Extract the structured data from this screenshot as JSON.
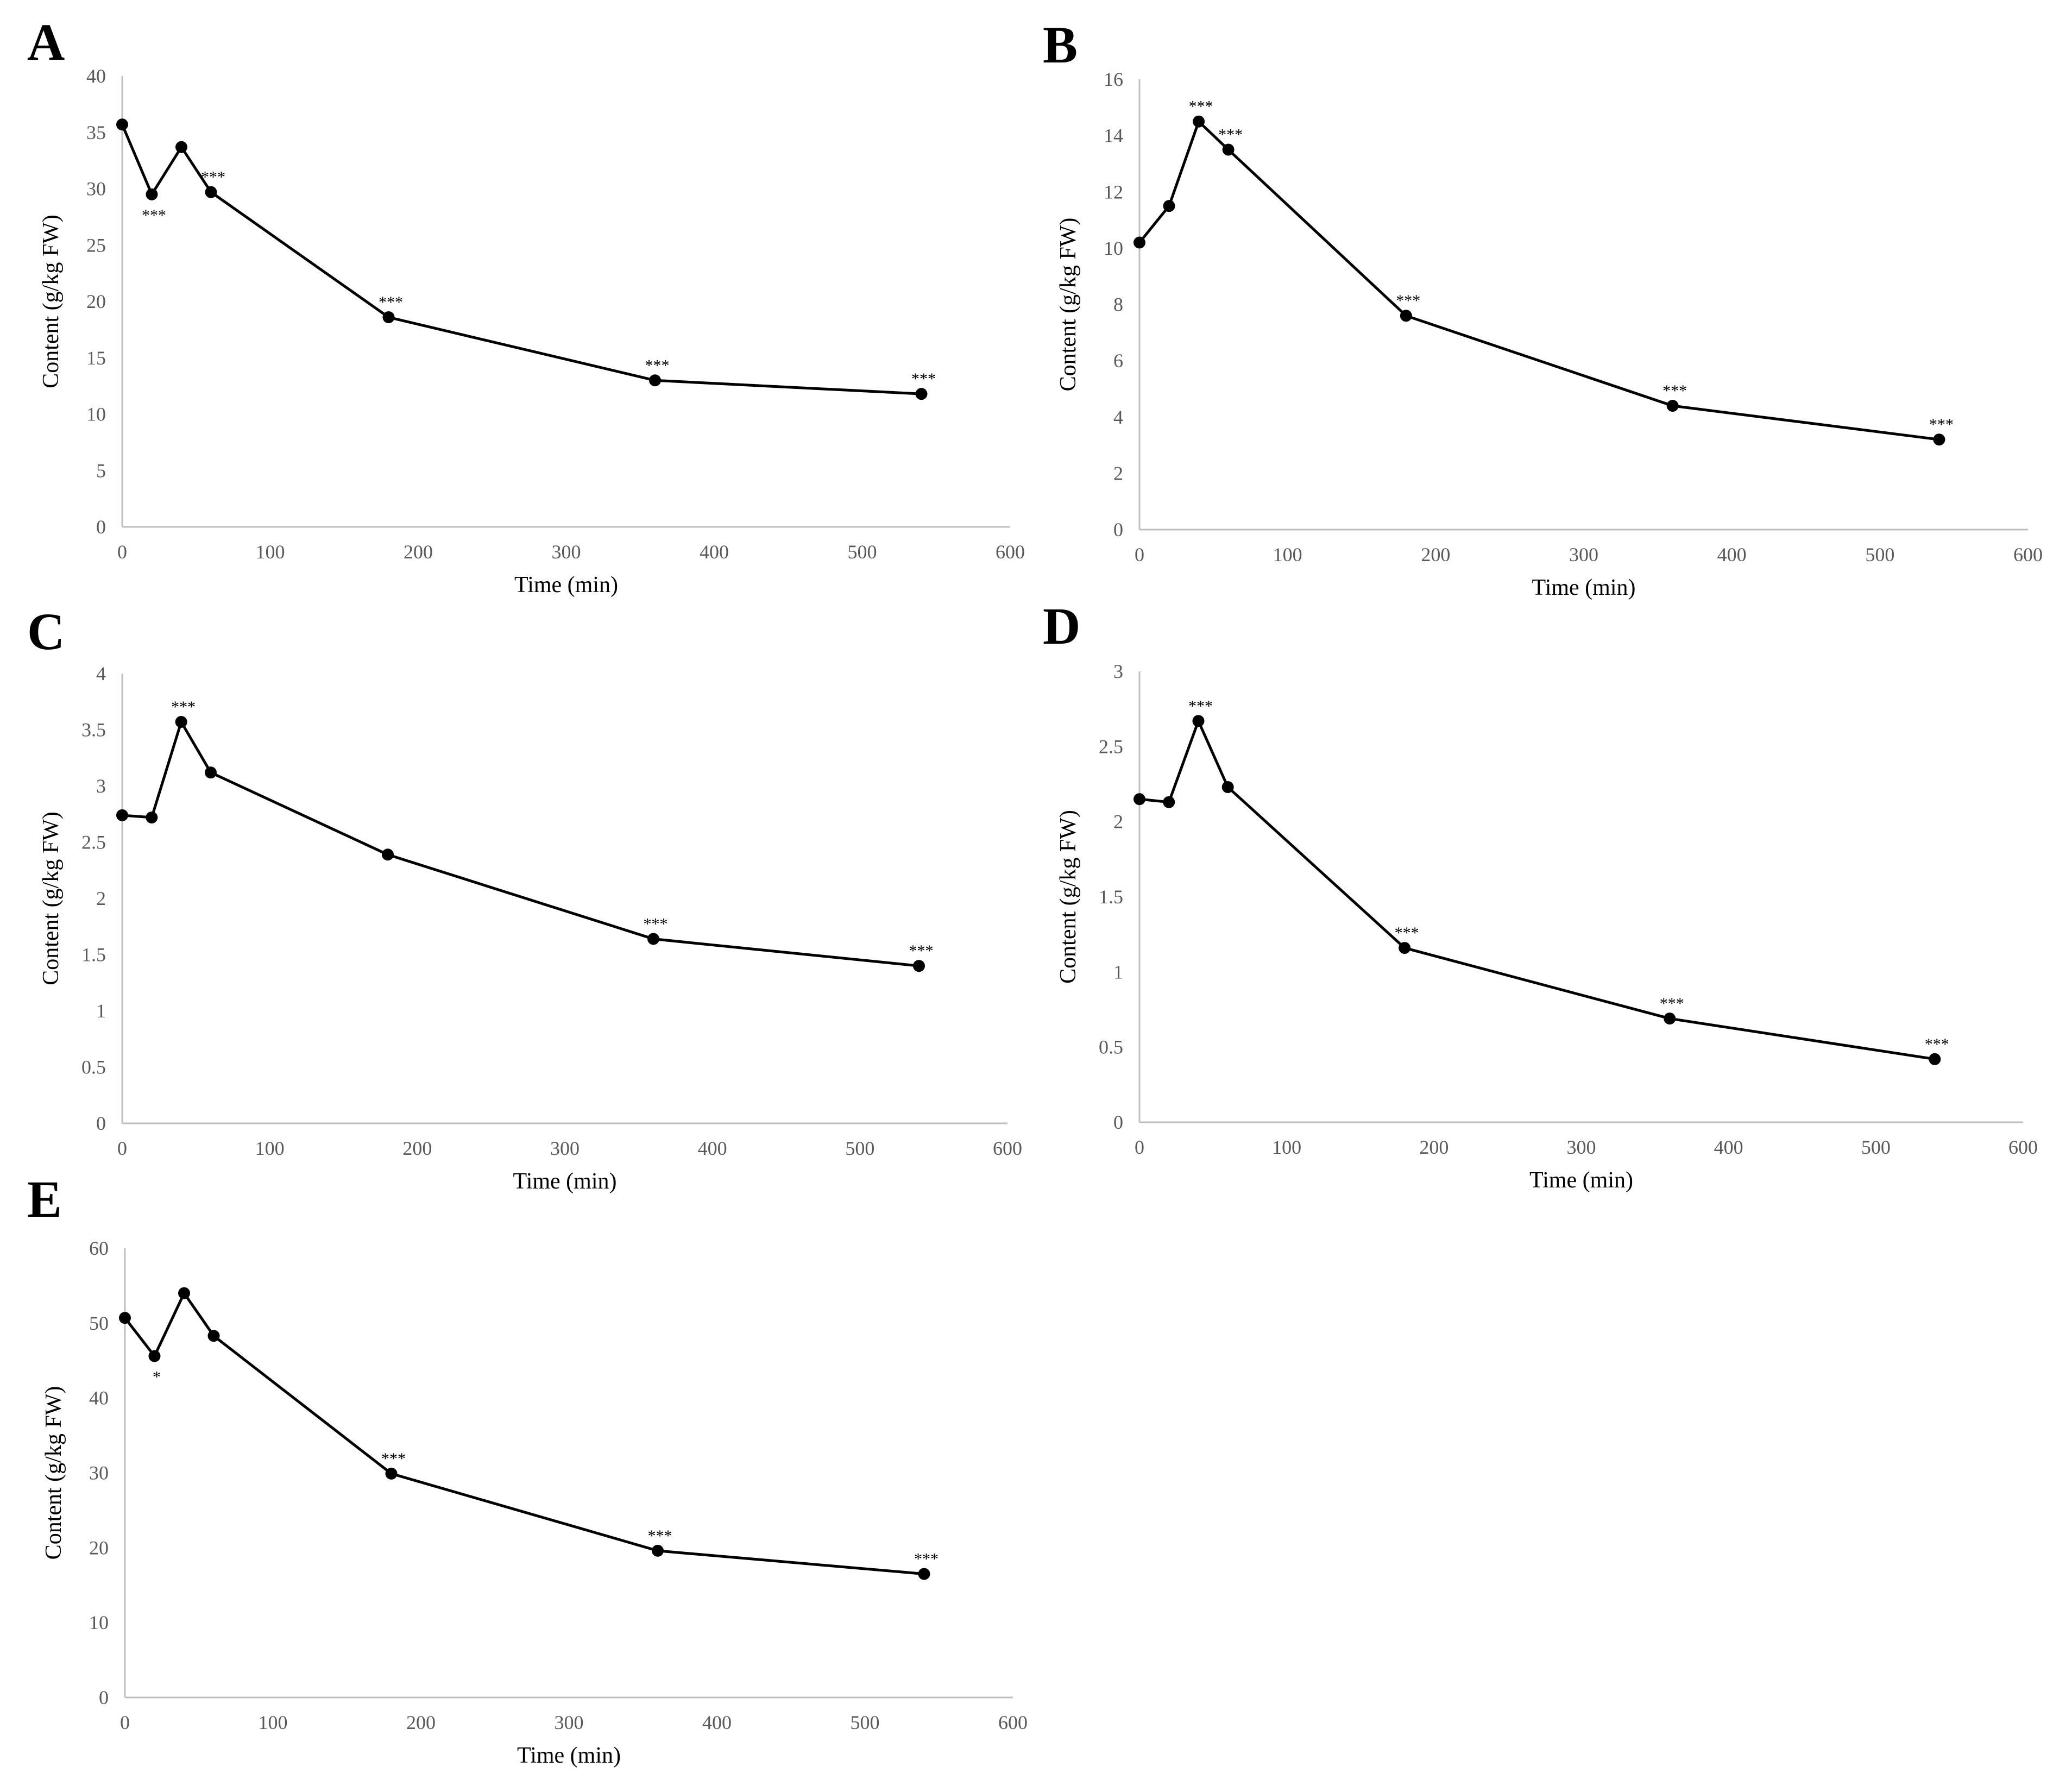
{
  "figure": {
    "panel_count": 5
  },
  "style": {
    "line_color": "#000000",
    "marker_color": "#000000",
    "axis_color": "#bfbfbf",
    "tick_label_color": "#595959",
    "text_color": "#000000"
  },
  "chart_data": [
    {
      "panel": "A",
      "type": "line",
      "xlabel": "Time (min)",
      "ylabel": "Content (g/kg FW)",
      "xlim": [
        0,
        600
      ],
      "ylim": [
        0,
        40
      ],
      "xticks": [
        0,
        100,
        200,
        300,
        400,
        500,
        600
      ],
      "xtick_labels": [
        "0",
        "100",
        "200",
        "300",
        "400",
        "500",
        "600"
      ],
      "yticks": [
        0,
        5,
        10,
        15,
        20,
        25,
        30,
        35,
        40
      ],
      "ytick_labels": [
        "0",
        "5",
        "10",
        "15",
        "20",
        "25",
        "30",
        "35",
        "40"
      ],
      "grid": false,
      "series": [
        {
          "name": "A",
          "x": [
            0,
            20,
            40,
            60,
            180,
            360,
            540
          ],
          "y": [
            35.7,
            29.5,
            33.7,
            29.7,
            18.6,
            13.0,
            11.8
          ],
          "significance": [
            "",
            "***",
            "",
            "***",
            "***",
            "***",
            "***"
          ],
          "sig_position": [
            "above",
            "below",
            "above",
            "above",
            "above",
            "above",
            "above"
          ]
        }
      ]
    },
    {
      "panel": "B",
      "type": "line",
      "xlabel": "Time (min)",
      "ylabel": "Content (g/kg FW)",
      "xlim": [
        0,
        600
      ],
      "ylim": [
        0,
        16
      ],
      "xticks": [
        0,
        100,
        200,
        300,
        400,
        500,
        600
      ],
      "xtick_labels": [
        "0",
        "100",
        "200",
        "300",
        "400",
        "500",
        "600"
      ],
      "yticks": [
        0,
        2,
        4,
        6,
        8,
        10,
        12,
        14,
        16
      ],
      "ytick_labels": [
        "0",
        "2",
        "4",
        "6",
        "8",
        "10",
        "12",
        "14",
        "16"
      ],
      "grid": false,
      "series": [
        {
          "name": "B",
          "x": [
            0,
            20,
            40,
            60,
            180,
            360,
            540
          ],
          "y": [
            10.2,
            11.5,
            14.5,
            13.5,
            7.6,
            4.4,
            3.2
          ],
          "significance": [
            "",
            "",
            "***",
            "***",
            "***",
            "***",
            "***"
          ],
          "sig_position": [
            "above",
            "above",
            "above",
            "above",
            "above",
            "above",
            "above"
          ]
        }
      ]
    },
    {
      "panel": "C",
      "type": "line",
      "xlabel": "Time (min)",
      "ylabel": "Content (g/kg FW)",
      "xlim": [
        0,
        600
      ],
      "ylim": [
        0,
        4
      ],
      "xticks": [
        0,
        100,
        200,
        300,
        400,
        500,
        600
      ],
      "xtick_labels": [
        "0",
        "100",
        "200",
        "300",
        "400",
        "500",
        "600"
      ],
      "yticks": [
        0,
        0.5,
        1,
        1.5,
        2,
        2.5,
        3,
        3.5,
        4
      ],
      "ytick_labels": [
        "0",
        "0.5",
        "1",
        "1.5",
        "2",
        "2.5",
        "3",
        "3.5",
        "4"
      ],
      "grid": false,
      "series": [
        {
          "name": "C",
          "x": [
            0,
            20,
            40,
            60,
            180,
            360,
            540
          ],
          "y": [
            2.74,
            2.72,
            3.57,
            3.12,
            2.39,
            1.64,
            1.4
          ],
          "significance": [
            "",
            "",
            "***",
            "",
            "",
            "***",
            "***"
          ],
          "sig_position": [
            "above",
            "above",
            "above",
            "above",
            "above",
            "above",
            "above"
          ]
        }
      ]
    },
    {
      "panel": "D",
      "type": "line",
      "xlabel": "Time (min)",
      "ylabel": "Content (g/kg FW)",
      "xlim": [
        0,
        600
      ],
      "ylim": [
        0,
        3
      ],
      "xticks": [
        0,
        100,
        200,
        300,
        400,
        500,
        600
      ],
      "xtick_labels": [
        "0",
        "100",
        "200",
        "300",
        "400",
        "500",
        "600"
      ],
      "yticks": [
        0,
        0.5,
        1,
        1.5,
        2,
        2.5,
        3
      ],
      "ytick_labels": [
        "0",
        "0.5",
        "1",
        "1.5",
        "2",
        "2.5",
        "3"
      ],
      "grid": false,
      "series": [
        {
          "name": "D",
          "x": [
            0,
            20,
            40,
            60,
            180,
            360,
            540
          ],
          "y": [
            2.15,
            2.13,
            2.67,
            2.23,
            1.16,
            0.69,
            0.42
          ],
          "significance": [
            "",
            "",
            "***",
            "",
            "***",
            "***",
            "***"
          ],
          "sig_position": [
            "above",
            "above",
            "above",
            "above",
            "above",
            "above",
            "above"
          ]
        }
      ]
    },
    {
      "panel": "E",
      "type": "line",
      "xlabel": "Time (min)",
      "ylabel": "Content (g/kg FW)",
      "xlim": [
        0,
        600
      ],
      "ylim": [
        0,
        60
      ],
      "xticks": [
        0,
        100,
        200,
        300,
        400,
        500,
        600
      ],
      "xtick_labels": [
        "0",
        "100",
        "200",
        "300",
        "400",
        "500",
        "600"
      ],
      "yticks": [
        0,
        10,
        20,
        30,
        40,
        50,
        60
      ],
      "ytick_labels": [
        "0",
        "10",
        "20",
        "30",
        "40",
        "50",
        "60"
      ],
      "grid": false,
      "series": [
        {
          "name": "E",
          "x": [
            0,
            20,
            40,
            60,
            180,
            360,
            540
          ],
          "y": [
            50.7,
            45.6,
            54.0,
            48.3,
            29.9,
            19.6,
            16.5
          ],
          "significance": [
            "",
            "*",
            "",
            "",
            "***",
            "***",
            "***"
          ],
          "sig_position": [
            "above",
            "below",
            "above",
            "above",
            "above",
            "above",
            "above"
          ]
        }
      ]
    }
  ]
}
